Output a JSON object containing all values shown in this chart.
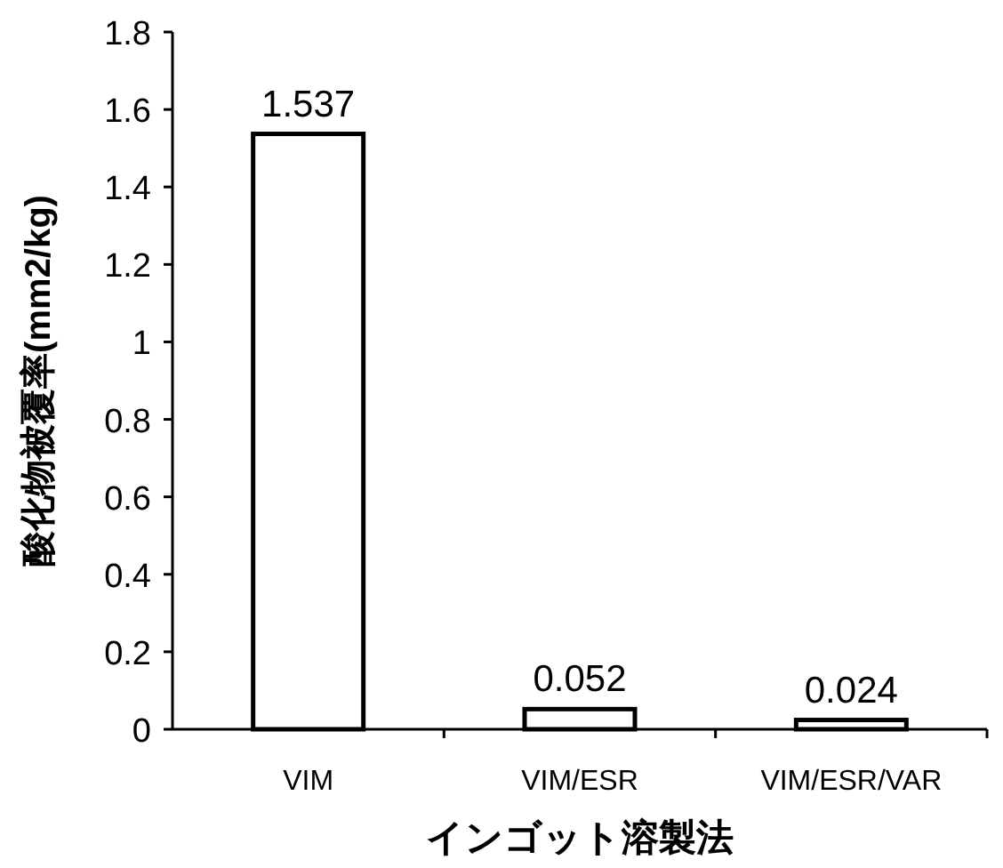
{
  "chart_data": {
    "type": "bar",
    "xlabel": "インゴット溶製法",
    "ylabel": "酸化物被覆率(mm2/kg)",
    "categories": [
      "VIM",
      "VIM/ESR",
      "VIM/ESR/VAR"
    ],
    "values": [
      1.537,
      0.052,
      0.024
    ],
    "color": "#ffffff",
    "ylim": [
      0,
      1.8
    ],
    "yticks": [
      0,
      0.2,
      0.4,
      0.6,
      0.8,
      1,
      1.2,
      1.4,
      1.6,
      1.8
    ],
    "data_labels": true,
    "grid": false
  }
}
